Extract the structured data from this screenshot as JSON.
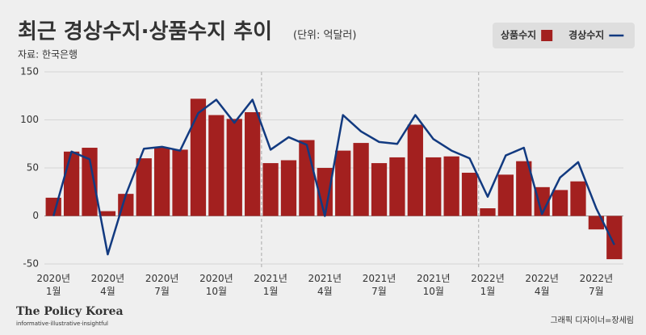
{
  "chart_data": {
    "type": "bar_line",
    "title": "최근 경상수지·상품수지 추이",
    "subtitle": "(단위: 억달러)",
    "source": "자료: 한국은행",
    "brand": "The Policy Korea",
    "brand_tagline": "informative·illustrative·insightful",
    "credit": "그래픽 디자이너=장세림",
    "categories": [
      "2020년 1월",
      null,
      null,
      "2020년 4월",
      null,
      null,
      "2020년 7월",
      null,
      null,
      "2020년 10월",
      null,
      null,
      "2021년 1월",
      null,
      null,
      "2021년 4월",
      null,
      null,
      "2021년 7월",
      null,
      null,
      "2021년 10월",
      null,
      null,
      "2022년 1월",
      null,
      null,
      "2022년 4월",
      null,
      null,
      "2022년 7월",
      null
    ],
    "series": [
      {
        "name": "상품수지",
        "kind": "bar",
        "color": "#a3201f",
        "values": [
          19,
          67,
          71,
          5,
          23,
          60,
          71,
          69,
          122,
          105,
          101,
          108,
          55,
          58,
          79,
          50,
          68,
          76,
          55,
          61,
          95,
          61,
          62,
          45,
          8,
          43,
          57,
          30,
          27,
          36,
          -14,
          -45
        ]
      },
      {
        "name": "경상수지",
        "kind": "line",
        "color": "#123a80",
        "values": [
          0,
          67,
          59,
          -40,
          22,
          70,
          72,
          68,
          107,
          121,
          97,
          121,
          69,
          82,
          74,
          0,
          105,
          88,
          77,
          75,
          105,
          80,
          68,
          60,
          20,
          63,
          71,
          2,
          40,
          56,
          8,
          -30
        ]
      }
    ],
    "ylim": [
      -55,
      150
    ],
    "yticks": [
      -50,
      0,
      50,
      100,
      150
    ],
    "grid": true
  }
}
